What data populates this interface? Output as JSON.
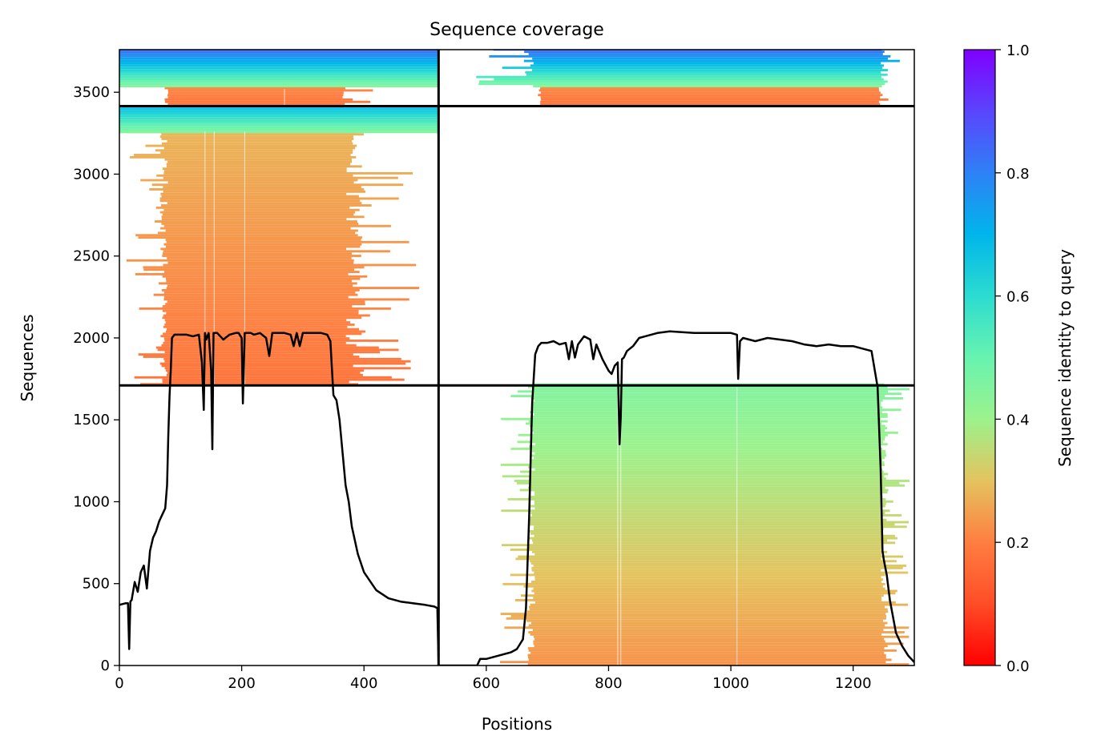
{
  "chart_data": {
    "type": "heatmap",
    "title": "Sequence coverage",
    "xlabel": "Positions",
    "ylabel": "Sequences",
    "xlim": [
      0,
      1300
    ],
    "ylim": [
      0,
      3760
    ],
    "xticks": [
      0,
      200,
      400,
      600,
      800,
      1000,
      1200
    ],
    "yticks": [
      0,
      500,
      1000,
      1500,
      2000,
      2500,
      3000,
      3500
    ],
    "colorbar": {
      "label": "Sequence identity to query",
      "ticks": [
        0.0,
        0.2,
        0.4,
        0.6,
        0.8,
        1.0
      ],
      "tick_labels": [
        "0.0",
        "0.2",
        "0.4",
        "0.6",
        "0.8",
        "1.0"
      ],
      "colormap": "rainbow_r"
    },
    "dividers": {
      "vertical_x": 522,
      "horizontal_y": [
        1710,
        3415
      ]
    },
    "blocks": [
      {
        "name": "bottom-left-block",
        "x_start": 80,
        "x_end": 370,
        "y_start": 1710,
        "y_end": 3260,
        "identity_low": 0.18,
        "identity_high": 0.28,
        "ragged_left_to": 10,
        "ragged_right_to": 500
      },
      {
        "name": "mid-left-header-block",
        "x_start": 0,
        "x_end": 522,
        "y_start": 3250,
        "y_end": 3415,
        "identity_low": 0.45,
        "identity_high": 0.7,
        "ragged_left_to": 0,
        "ragged_right_to": 522
      },
      {
        "name": "top-left-red-block",
        "x_start": 80,
        "x_end": 360,
        "y_start": 3420,
        "y_end": 3530,
        "identity_low": 0.18,
        "identity_high": 0.22,
        "ragged_left_to": 70,
        "ragged_right_to": 420
      },
      {
        "name": "top-left-green-block",
        "x_start": 0,
        "x_end": 522,
        "y_start": 3530,
        "y_end": 3760,
        "identity_low": 0.45,
        "identity_high": 0.85,
        "ragged_left_to": 0,
        "ragged_right_to": 522
      },
      {
        "name": "lower-right-block",
        "x_start": 680,
        "x_end": 1245,
        "y_start": 0,
        "y_end": 1710,
        "identity_low": 0.23,
        "identity_high": 0.45,
        "ragged_left_to": 620,
        "ragged_right_to": 1295
      },
      {
        "name": "top-right-red-block",
        "x_start": 690,
        "x_end": 1240,
        "y_start": 3420,
        "y_end": 3530,
        "identity_low": 0.18,
        "identity_high": 0.22,
        "ragged_left_to": 680,
        "ragged_right_to": 1260
      },
      {
        "name": "top-right-green-block",
        "x_start": 680,
        "x_end": 1245,
        "y_start": 3530,
        "y_end": 3760,
        "identity_low": 0.45,
        "identity_high": 0.85,
        "ragged_left_to": 580,
        "ragged_right_to": 1295
      }
    ],
    "coverage_line": {
      "color": "#000000",
      "x": [
        0,
        10,
        14,
        16,
        18,
        20,
        25,
        30,
        35,
        40,
        45,
        50,
        55,
        60,
        65,
        70,
        75,
        78,
        80,
        82,
        84,
        86,
        90,
        100,
        110,
        120,
        130,
        135,
        138,
        140,
        142,
        146,
        150,
        152,
        154,
        156,
        160,
        170,
        180,
        190,
        195,
        200,
        202,
        205,
        208,
        215,
        220,
        230,
        240,
        245,
        250,
        260,
        270,
        280,
        285,
        290,
        295,
        300,
        305,
        310,
        320,
        330,
        340,
        345,
        350,
        355,
        360,
        365,
        370,
        375,
        380,
        390,
        400,
        420,
        440,
        460,
        480,
        500,
        515,
        520,
        522
      ],
      "y": [
        370,
        380,
        380,
        100,
        390,
        400,
        510,
        450,
        570,
        610,
        470,
        700,
        780,
        820,
        880,
        920,
        960,
        1100,
        1400,
        1650,
        1800,
        2000,
        2020,
        2020,
        2020,
        2010,
        2020,
        1850,
        1560,
        2030,
        1990,
        2030,
        1800,
        1320,
        2030,
        2030,
        2030,
        1990,
        2020,
        2030,
        2030,
        2000,
        1600,
        2030,
        2030,
        2030,
        2020,
        2030,
        2000,
        1890,
        2030,
        2030,
        2030,
        2020,
        1950,
        2030,
        1950,
        2030,
        2030,
        2030,
        2030,
        2030,
        2020,
        1980,
        1650,
        1620,
        1500,
        1300,
        1100,
        1000,
        850,
        680,
        570,
        460,
        410,
        390,
        380,
        370,
        360,
        350,
        10
      ],
      "x2": [
        522,
        570,
        585,
        590,
        600,
        620,
        640,
        650,
        655,
        660,
        665,
        670,
        675,
        680,
        685,
        690,
        700,
        710,
        720,
        730,
        735,
        740,
        745,
        750,
        760,
        770,
        775,
        780,
        790,
        800,
        805,
        810,
        815,
        818,
        820,
        822,
        825,
        830,
        840,
        850,
        860,
        880,
        900,
        920,
        940,
        960,
        980,
        1000,
        1010,
        1012,
        1015,
        1020,
        1040,
        1060,
        1080,
        1100,
        1120,
        1140,
        1160,
        1180,
        1200,
        1230,
        1240,
        1245,
        1248,
        1250,
        1255,
        1260,
        1265,
        1270,
        1280,
        1290,
        1295,
        1300
      ],
      "y2": [
        0,
        0,
        0,
        40,
        40,
        60,
        80,
        100,
        130,
        160,
        350,
        900,
        1600,
        1900,
        1950,
        1970,
        1970,
        1980,
        1960,
        1970,
        1870,
        1980,
        1880,
        1960,
        2010,
        1990,
        1870,
        1960,
        1870,
        1800,
        1780,
        1830,
        1850,
        1350,
        1520,
        1870,
        1880,
        1920,
        1950,
        2000,
        2010,
        2030,
        2040,
        2035,
        2030,
        2030,
        2030,
        2030,
        2020,
        1750,
        1980,
        2000,
        1980,
        2000,
        1990,
        1980,
        1960,
        1950,
        1960,
        1950,
        1950,
        1920,
        1700,
        1200,
        700,
        650,
        550,
        400,
        300,
        200,
        120,
        60,
        40,
        20
      ]
    }
  }
}
